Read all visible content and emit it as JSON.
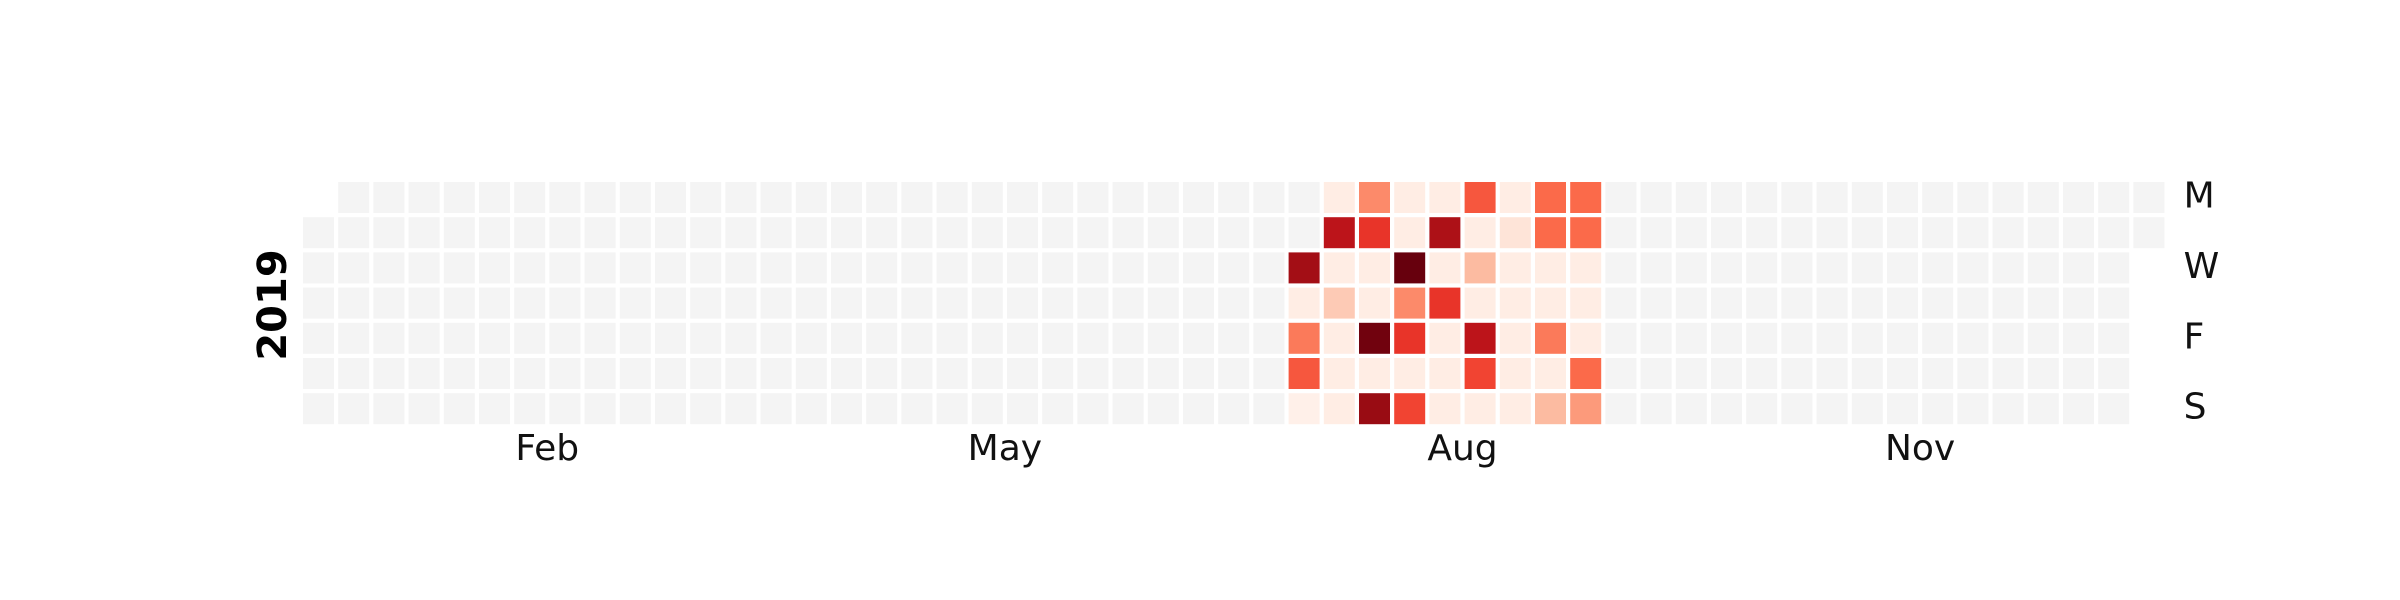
{
  "chart_data": {
    "type": "heatmap",
    "subtype": "calendar",
    "year_label": "2019",
    "year_start_weekday": 1,
    "days_in_year": 365,
    "day_labels": [
      "M",
      "",
      "W",
      "",
      "F",
      "",
      "S"
    ],
    "month_labels": [
      "Feb",
      "May",
      "Aug",
      "Nov"
    ],
    "month_label_weeks": [
      6.5,
      19.5,
      32.5,
      45.5
    ],
    "colormap": "Reds",
    "empty_color": "#f4f4f4",
    "value_range": [
      0,
      1
    ],
    "weeks": [
      {
        "week": 28,
        "values": [
          null,
          null,
          0.88,
          0.05,
          0.45,
          0.55,
          0.03
        ]
      },
      {
        "week": 29,
        "values": [
          0.05,
          0.8,
          0.05,
          0.2,
          0.05,
          0.05,
          0.05
        ]
      },
      {
        "week": 30,
        "values": [
          0.4,
          0.65,
          0.05,
          0.05,
          0.98,
          0.05,
          0.9
        ]
      },
      {
        "week": 31,
        "values": [
          0.05,
          0.05,
          1.0,
          0.4,
          0.65,
          0.05,
          0.6
        ]
      },
      {
        "week": 32,
        "values": [
          0.05,
          0.85,
          0.05,
          0.65,
          0.05,
          0.05,
          0.05
        ]
      },
      {
        "week": 33,
        "values": [
          0.55,
          0.05,
          0.25,
          0.05,
          0.8,
          0.6,
          0.05
        ]
      },
      {
        "week": 34,
        "values": [
          0.05,
          0.1,
          0.05,
          0.05,
          0.05,
          0.05,
          0.05
        ]
      },
      {
        "week": 35,
        "values": [
          0.5,
          0.5,
          0.05,
          0.05,
          0.45,
          0.05,
          0.25
        ]
      },
      {
        "week": 36,
        "values": [
          0.5,
          0.5,
          0.05,
          0.05,
          0.05,
          0.5,
          0.35
        ]
      }
    ]
  }
}
